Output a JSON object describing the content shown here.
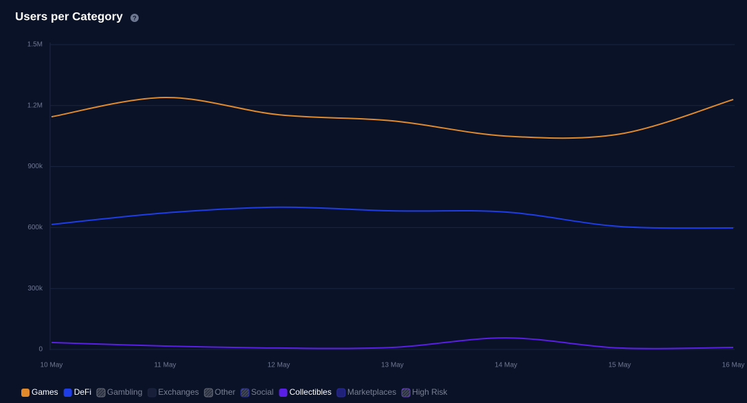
{
  "chart_data": {
    "type": "line",
    "title": "Users per Category",
    "categories": [
      "10 May",
      "11 May",
      "12 May",
      "13 May",
      "14 May",
      "15 May",
      "16 May"
    ],
    "series": [
      {
        "name": "Games",
        "color": "#e08a2c",
        "values": [
          1145000,
          1240000,
          1155000,
          1125000,
          1050000,
          1060000,
          1230000
        ]
      },
      {
        "name": "DeFi",
        "color": "#1f3de6",
        "values": [
          615000,
          672000,
          700000,
          682000,
          676000,
          605000,
          598000
        ]
      },
      {
        "name": "Gambling",
        "color": "#6b6f7a",
        "visible": false
      },
      {
        "name": "Exchanges",
        "color": "#1c2540",
        "visible": false
      },
      {
        "name": "Other",
        "color": "#6b6f7a",
        "visible": false
      },
      {
        "name": "Social",
        "color": "#2b2ea8",
        "visible": false
      },
      {
        "name": "Collectibles",
        "color": "#5a1fe6",
        "values": [
          34000,
          17000,
          7000,
          10000,
          57000,
          7000,
          10000
        ]
      },
      {
        "name": "Marketplaces",
        "color": "#2a2a9c",
        "visible": false
      },
      {
        "name": "High Risk",
        "color": "#6a3bd0",
        "visible": false
      }
    ],
    "ylim": [
      0,
      1500000
    ],
    "yticks": [
      0,
      {
        "value": 300000,
        "label": "300k"
      },
      {
        "value": 600000,
        "label": "600k"
      },
      {
        "value": 900000,
        "label": "900k"
      },
      {
        "value": 1200000,
        "label": "1.2M"
      },
      {
        "value": 1500000,
        "label": "1.5M"
      }
    ],
    "grid": true,
    "legend": "bottom"
  }
}
